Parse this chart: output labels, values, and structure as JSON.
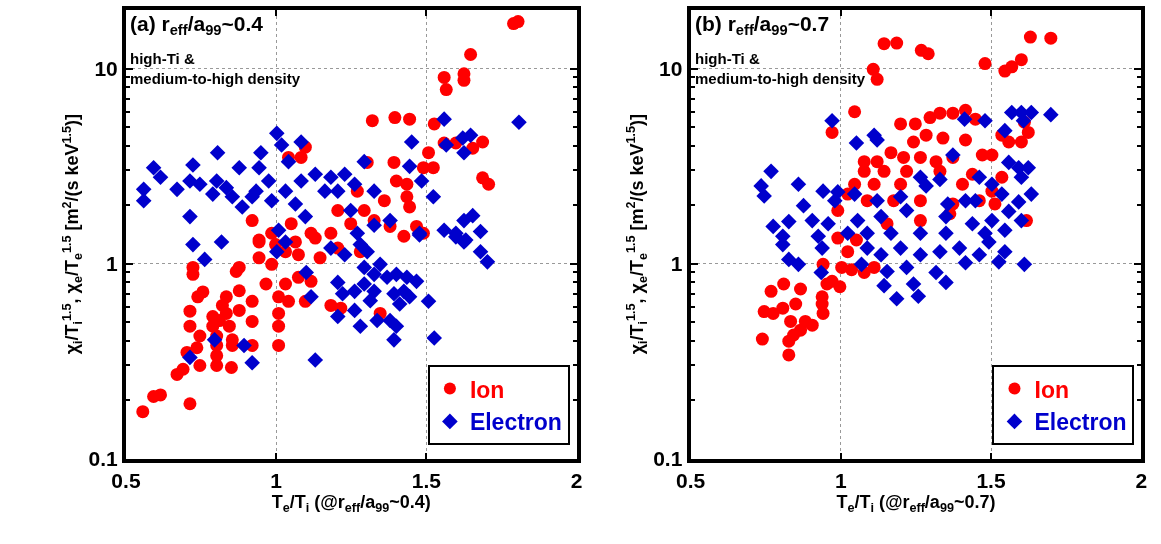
{
  "chart_data": [
    {
      "type": "scatter",
      "title": "(a) r$_{eff}$/a$_{99}$~0.4",
      "subtitle": "high-Ti &\nmedium-to-high density",
      "xlabel": "T$_{e}$/T$_{i}$ (@r$_{eff}$/a$_{99}$~0.4)",
      "ylabel": "χ$_{i}$/T$_{i}$$^{1.5}$, χ$_{e}$/T$_{e}$$^{1.5}$ [m$^{2}$/(s keV$^{1.5}$)]",
      "xlim": [
        0.5,
        2
      ],
      "xticks": [
        0.5,
        1,
        1.5,
        2
      ],
      "ylim": [
        0.1,
        20
      ],
      "log": "y",
      "yticks": [
        0.1,
        {
          "value": 0.2,
          "label": null
        },
        {
          "value": 0.3,
          "label": null
        },
        {
          "value": 0.4,
          "label": null
        },
        {
          "value": 0.5,
          "label": null
        },
        {
          "value": 0.6,
          "label": null
        },
        {
          "value": 0.7,
          "label": null
        },
        {
          "value": 0.8,
          "label": null
        },
        {
          "value": 0.9,
          "label": null
        },
        1,
        {
          "value": 2,
          "label": null
        },
        {
          "value": 3,
          "label": null
        },
        {
          "value": 4,
          "label": null
        },
        {
          "value": 5,
          "label": null
        },
        {
          "value": 6,
          "label": null
        },
        {
          "value": 7,
          "label": null
        },
        {
          "value": 8,
          "label": null
        },
        {
          "value": 9,
          "label": null
        },
        10
      ],
      "grid": true,
      "legend": "bottom right",
      "series": [
        {
          "name": "Ion",
          "color": "#ff0000",
          "marker": "circle",
          "x": [
            1.805,
            1.79,
            1.647,
            1.559,
            1.625,
            1.625,
            1.566,
            1.32,
            1.395,
            1.444,
            1.526,
            1.559,
            1.598,
            1.687,
            1.654,
            1.507,
            1.041,
            1.083,
            1.097,
            1.392,
            1.49,
            1.523,
            1.687,
            1.707,
            1.4,
            1.435,
            1.303,
            1.27,
            1.36,
            1.435,
            1.444,
            1.293,
            1.205,
            1.326,
            1.248,
            1.379,
            1.467,
            1.182,
            1.116,
            1.05,
            0.985,
            0.943,
            0.92,
            1.425,
            1.49,
            0.943,
            0.998,
            1.064,
            1.13,
            0.943,
            0.985,
            1.031,
            1.074,
            1.146,
            1.205,
            1.28,
            0.723,
            0.723,
            0.867,
            0.877,
            0.966,
            1.031,
            1.074,
            1.116,
            0.756,
            0.739,
            0.877,
            0.834,
            1.008,
            1.041,
            1.097,
            1.182,
            1.215,
            0.92,
            0.713,
            1.008,
            1.346,
            0.789,
            0.834,
            0.877,
            0.92,
            0.713,
            0.789,
            0.844,
            1.008,
            0.746,
            0.802,
            0.854,
            0.736,
            0.802,
            0.854,
            0.92,
            1.008,
            0.703,
            0.802,
            0.746,
            0.802,
            0.851,
            0.69,
            0.67,
            0.615,
            0.592,
            0.556,
            0.713,
            0.811,
            0.821
          ],
          "values": [
            17.4,
            17.0,
            11.8,
            9.0,
            9.4,
            8.7,
            7.8,
            5.4,
            5.6,
            5.5,
            5.2,
            4.15,
            4.15,
            4.2,
            3.9,
            3.7,
            3.5,
            3.5,
            3.95,
            3.3,
            3.1,
            3.1,
            2.75,
            2.55,
            2.65,
            2.55,
            3.3,
            2.35,
            2.1,
            2.2,
            1.95,
            1.87,
            1.87,
            1.66,
            1.6,
            1.55,
            1.55,
            1.43,
            1.43,
            1.6,
            1.43,
            1.32,
            1.66,
            1.38,
            1.43,
            1.29,
            1.25,
            1.29,
            1.35,
            1.07,
            0.99,
            1.15,
            1.11,
            1.07,
            1.2,
            1.15,
            0.955,
            0.88,
            0.91,
            0.955,
            0.785,
            0.785,
            0.85,
            0.81,
            0.715,
            0.675,
            0.725,
            0.675,
            0.675,
            0.64,
            0.64,
            0.61,
            0.59,
            0.64,
            0.57,
            0.555,
            0.555,
            0.535,
            0.555,
            0.575,
            0.505,
            0.477,
            0.477,
            0.477,
            0.477,
            0.425,
            0.425,
            0.406,
            0.37,
            0.38,
            0.38,
            0.38,
            0.38,
            0.35,
            0.337,
            0.3,
            0.3,
            0.293,
            0.287,
            0.27,
            0.212,
            0.208,
            0.174,
            0.191,
            0.51,
            0.61
          ]
        },
        {
          "name": "Electron",
          "color": "#0000cc",
          "marker": "diamond",
          "x": [
            1.559,
            1.808,
            1.002,
            1.451,
            1.621,
            1.647,
            1.625,
            1.566,
            1.083,
            1.018,
            0.805,
            0.949,
            1.041,
            0.592,
            0.723,
            0.877,
            0.943,
            1.293,
            1.444,
            0.615,
            0.559,
            0.559,
            0.67,
            0.713,
            0.746,
            0.802,
            0.834,
            0.789,
            0.854,
            0.887,
            0.933,
            0.975,
            0.985,
            0.92,
            1.031,
            1.083,
            1.13,
            1.182,
            1.228,
            1.162,
            1.205,
            1.261,
            1.326,
            1.064,
            1.097,
            0.713,
            1.523,
            1.484,
            1.379,
            1.477,
            1.559,
            1.598,
            1.625,
            1.654,
            1.68,
            1.631,
            1.326,
            1.248,
            1.008,
            1.27,
            0.723,
            0.818,
            0.762,
            1.002,
            1.031,
            1.182,
            1.228,
            1.28,
            1.303,
            1.477,
            1.598,
            1.625,
            1.68,
            1.703,
            1.1,
            1.205,
            1.221,
            1.116,
            1.261,
            1.293,
            1.326,
            1.346,
            1.293,
            1.326,
            1.369,
            1.4,
            1.435,
            1.467,
            1.425,
            1.392,
            1.444,
            1.411,
            1.261,
            1.205,
            1.336,
            1.28,
            1.379,
            1.4,
            1.392,
            1.507,
            1.526,
            0.795,
            0.893,
            0.92,
            0.713,
            1.13,
            1.313
          ],
          "values": [
            5.5,
            5.3,
            4.65,
            4.2,
            4.4,
            4.55,
            3.7,
            4.05,
            4.2,
            4.05,
            3.7,
            3.7,
            3.33,
            3.1,
            3.2,
            3.1,
            3.1,
            3.33,
            3.15,
            2.77,
            2.4,
            2.1,
            2.4,
            2.65,
            2.55,
            2.65,
            2.45,
            2.27,
            2.2,
            1.95,
            2.35,
            2.65,
            2.1,
            2.2,
            2.35,
            2.65,
            2.87,
            2.77,
            2.87,
            2.35,
            2.35,
            2.55,
            2.35,
            2.02,
            1.74,
            1.74,
            2.2,
            2.65,
            1.66,
            1.43,
            1.48,
            1.43,
            1.66,
            1.76,
            1.46,
            1.32,
            1.57,
            1.87,
            1.48,
            1.43,
            1.25,
            1.29,
            1.05,
            1.15,
            1.29,
            1.2,
            1.11,
            1.25,
            1.15,
            1.4,
            1.37,
            1.29,
            1.15,
            1.02,
            0.9,
            0.8,
            0.7,
            0.675,
            0.72,
            0.955,
            0.88,
            0.99,
            0.785,
            0.72,
            0.85,
            0.88,
            0.85,
            0.81,
            0.72,
            0.7,
            0.675,
            0.62,
            0.575,
            0.535,
            0.51,
            0.477,
            0.51,
            0.477,
            0.406,
            0.64,
            0.415,
            0.406,
            0.38,
            0.31,
            0.33,
            0.32,
            0.645
          ]
        }
      ]
    },
    {
      "type": "scatter",
      "title": "(b) r$_{eff}$/a$_{99}$~0.7",
      "subtitle": "high-Ti &\nmedium-to-high density",
      "xlabel": "T$_{e}$/T$_{i}$ (@r$_{eff}$/a$_{99}$~0.7)",
      "ylabel": "χ$_{i}$/T$_{i}$$^{1.5}$, χ$_{e}$/T$_{e}$$^{1.5}$ [m$^{2}$/(s keV$^{1.5}$)]",
      "xlim": [
        0.5,
        2
      ],
      "xticks": [
        0.5,
        1,
        1.5,
        2
      ],
      "ylim": [
        0.1,
        20
      ],
      "log": "y",
      "yticks": [
        0.1,
        {
          "value": 0.2,
          "label": null
        },
        {
          "value": 0.3,
          "label": null
        },
        {
          "value": 0.4,
          "label": null
        },
        {
          "value": 0.5,
          "label": null
        },
        {
          "value": 0.6,
          "label": null
        },
        {
          "value": 0.7,
          "label": null
        },
        {
          "value": 0.8,
          "label": null
        },
        {
          "value": 0.9,
          "label": null
        },
        1,
        {
          "value": 2,
          "label": null
        },
        {
          "value": 3,
          "label": null
        },
        {
          "value": 4,
          "label": null
        },
        {
          "value": 5,
          "label": null
        },
        {
          "value": 6,
          "label": null
        },
        {
          "value": 7,
          "label": null
        },
        {
          "value": 8,
          "label": null
        },
        {
          "value": 9,
          "label": null
        },
        10
      ],
      "grid": true,
      "legend": "bottom right",
      "series": [
        {
          "name": "Ion",
          "color": "#ff0000",
          "marker": "circle",
          "x": [
            1.631,
            1.699,
            1.144,
            1.186,
            1.268,
            1.291,
            1.108,
            1.121,
            1.48,
            1.546,
            1.569,
            1.601,
            1.046,
            0.971,
            1.199,
            1.248,
            1.297,
            1.33,
            1.373,
            1.415,
            1.448,
            1.48,
            1.536,
            1.611,
            1.624,
            1.601,
            1.559,
            1.284,
            1.34,
            1.415,
            1.242,
            1.167,
            1.209,
            1.265,
            1.317,
            1.373,
            1.471,
            1.503,
            1.078,
            1.121,
            1.078,
            1.144,
            1.219,
            1.33,
            1.438,
            1.536,
            1.046,
            1.111,
            1.199,
            1.405,
            1.503,
            1.023,
            1.088,
            1.176,
            1.265,
            1.373,
            1.461,
            1.513,
            0.99,
            1.219,
            1.618,
            1.265,
            1.363,
            1.154,
            0.99,
            1.052,
            1.023,
            0.941,
            1.003,
            1.036,
            1.078,
            1.111,
            0.971,
            0.997,
            0.954,
            0.768,
            0.81,
            0.866,
            0.938,
            0.938,
            0.85,
            0.745,
            0.775,
            0.807,
            0.941,
            0.833,
            0.882,
            0.905,
            0.866,
            0.843,
            0.827,
            0.739,
            0.827
          ],
          "values": [
            14.5,
            14.3,
            13.4,
            13.5,
            12.4,
            11.9,
            9.9,
            8.8,
            10.6,
            9.7,
            10.2,
            11.1,
            6.0,
            4.7,
            5.2,
            5.2,
            5.6,
            5.9,
            5.9,
            6.1,
            5.5,
            null,
            4.55,
            5.3,
            4.7,
            4.2,
            4.2,
            4.55,
            4.4,
            4.3,
            4.2,
            3.7,
            3.5,
            3.5,
            3.33,
            3.5,
            3.6,
            3.6,
            3.33,
            3.33,
            2.97,
            2.97,
            2.97,
            2.97,
            2.87,
            2.77,
            2.55,
            2.55,
            2.55,
            2.55,
            2.35,
            2.27,
            2.1,
            2.1,
            2.1,
            2.02,
            2.1,
            2.02,
            1.87,
            null,
            1.66,
            1.66,
            1.8,
            1.6,
            1.35,
            1.32,
            1.15,
            0.99,
            0.955,
            0.93,
            0.9,
            0.955,
            0.81,
            0.76,
            0.785,
            0.72,
            0.785,
            0.74,
            0.675,
            0.62,
            0.62,
            0.567,
            0.555,
            0.59,
            0.555,
            0.505,
            0.505,
            0.483,
            0.455,
            0.43,
            0.4,
            0.41,
            0.34
          ]
        },
        {
          "name": "Electron",
          "color": "#0000cc",
          "marker": "diamond",
          "x": [
            0.971,
            1.569,
            1.601,
            1.634,
            1.699,
            1.608,
            1.412,
            1.48,
            1.546,
            1.111,
            1.052,
            1.121,
            1.373,
            1.559,
            1.592,
            1.624,
            1.601,
            0.768,
            0.735,
            0.745,
            0.859,
            0.941,
            0.99,
            0.876,
            0.98,
            1.046,
            1.121,
            1.199,
            1.265,
            1.33,
            1.461,
            1.503,
            1.415,
            1.448,
            1.536,
            1.592,
            1.634,
            1.559,
            1.356,
            1.284,
            0.775,
            0.827,
            0.905,
            0.958,
            1.056,
            1.134,
            1.219,
            1.35,
            1.438,
            1.503,
            1.546,
            1.601,
            1.023,
            1.088,
            1.167,
            1.265,
            1.35,
            1.48,
            0.807,
            0.925,
            0.807,
            0.938,
            0.827,
            0.859,
            0.935,
            1.088,
            1.134,
            1.199,
            1.265,
            1.33,
            1.395,
            1.461,
            1.526,
            1.546,
            1.611,
            1.154,
            1.219,
            1.317,
            1.35,
            1.144,
            1.186,
            1.258,
            1.242,
            1.415,
            1.069,
            1.493
          ],
          "values": [
            5.4,
            5.95,
            5.95,
            5.95,
            5.8,
            5.4,
            5.5,
            5.4,
            4.8,
            4.55,
            4.15,
            4.3,
            3.6,
            3.3,
            3.1,
            3.1,
            2.77,
            2.97,
            2.5,
            2.22,
            2.55,
            2.35,
            2.33,
            1.98,
            2.1,
            2.27,
            2.1,
            2.2,
            2.77,
            2.7,
            2.77,
            2.55,
            2.1,
            2.1,
            2.27,
            2.07,
            2.27,
            1.85,
            2.02,
            2.5,
            1.55,
            1.64,
            1.66,
            1.6,
            1.66,
            1.74,
            1.87,
            1.74,
            1.6,
            1.66,
            1.48,
            1.66,
            1.43,
            1.43,
            1.43,
            1.43,
            1.43,
            1.43,
            1.38,
            1.38,
            1.25,
            1.2,
            1.05,
            0.99,
            0.9,
            1.2,
            1.11,
            1.2,
            1.11,
            1.15,
            1.2,
            1.11,
            1.02,
            1.15,
            0.99,
            0.91,
            0.955,
            0.9,
            0.8,
            0.77,
            0.66,
            0.68,
            0.785,
            1.01,
            0.99,
            1.29
          ]
        }
      ]
    }
  ]
}
